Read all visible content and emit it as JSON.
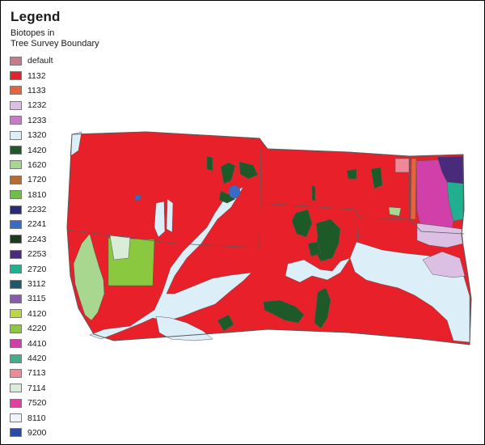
{
  "legend": {
    "title": "Legend",
    "subtitle_line1": "Biotopes in",
    "subtitle_line2": "Tree Survey Boundary",
    "items": [
      {
        "label": "default",
        "color": "#c87a8a"
      },
      {
        "label": "1132",
        "color": "#e8202a"
      },
      {
        "label": "1133",
        "color": "#e8623a"
      },
      {
        "label": "1232",
        "color": "#dcc0e4"
      },
      {
        "label": "1233",
        "color": "#c87ac8"
      },
      {
        "label": "1320",
        "color": "#dceef8"
      },
      {
        "label": "1420",
        "color": "#1e5a28"
      },
      {
        "label": "1620",
        "color": "#a8d890"
      },
      {
        "label": "1720",
        "color": "#b86a30"
      },
      {
        "label": "1810",
        "color": "#70c048"
      },
      {
        "label": "2232",
        "color": "#2a2a7a"
      },
      {
        "label": "2241",
        "color": "#3a6ac8"
      },
      {
        "label": "2243",
        "color": "#1e3a1e"
      },
      {
        "label": "2253",
        "color": "#4a2a7a"
      },
      {
        "label": "2720",
        "color": "#20b090"
      },
      {
        "label": "3112",
        "color": "#1a5a6a"
      },
      {
        "label": "3115",
        "color": "#8a5ab0"
      },
      {
        "label": "4120",
        "color": "#bcd840"
      },
      {
        "label": "4220",
        "color": "#8ac840"
      },
      {
        "label": "4410",
        "color": "#d040a8"
      },
      {
        "label": "4420",
        "color": "#40b088"
      },
      {
        "label": "7113",
        "color": "#f08898"
      },
      {
        "label": "7114",
        "color": "#d8ecd8"
      },
      {
        "label": "7520",
        "color": "#e040a0"
      },
      {
        "label": "8110",
        "color": "#eef4fa"
      },
      {
        "label": "9200",
        "color": "#2a4aa8"
      }
    ]
  },
  "map": {
    "colors": {
      "boundary": "#5a5a5a",
      "red": "#e8202a",
      "dark_green": "#1e5a28",
      "light_blue": "#dceef8",
      "pale_green": "#8ac840",
      "light_green": "#a8d890",
      "mint": "#d8ecd8",
      "lilac": "#dcc0e4",
      "magenta": "#d040a8",
      "navy": "#4a2a7a",
      "teal": "#20b090",
      "blue": "#3a6ac8",
      "orange": "#e8623a",
      "pink": "#f08898"
    }
  }
}
